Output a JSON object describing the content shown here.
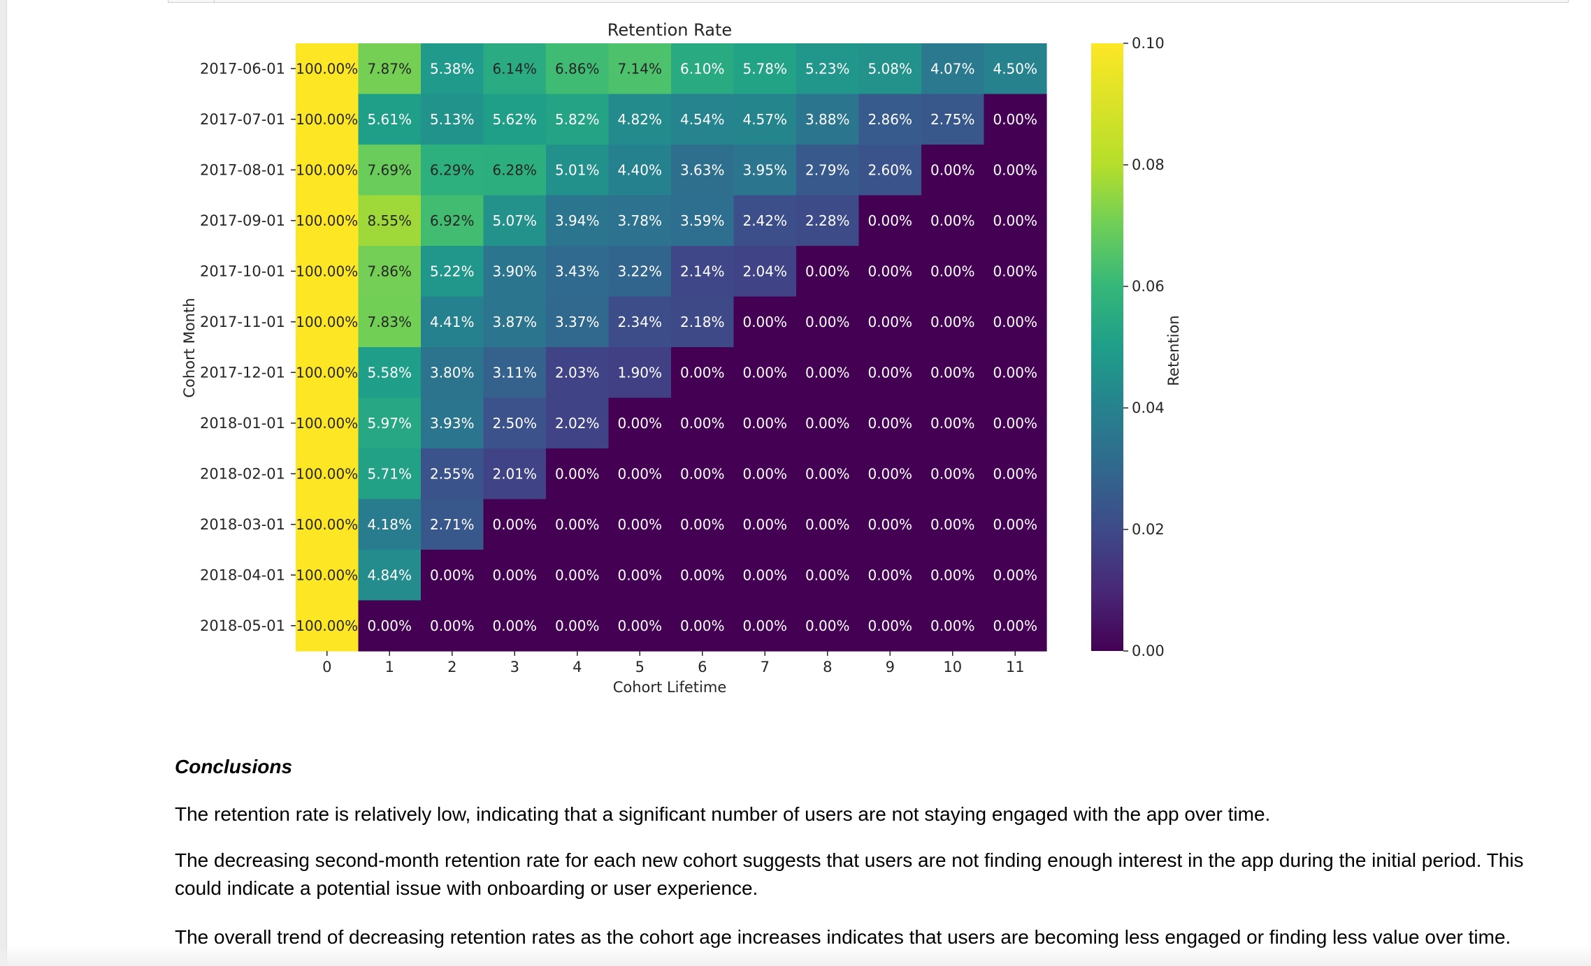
{
  "chart_data": {
    "type": "heatmap",
    "title": "Retention Rate",
    "xlabel": "Cohort Lifetime",
    "ylabel": "Cohort Month",
    "x": [
      "0",
      "1",
      "2",
      "3",
      "4",
      "5",
      "6",
      "7",
      "8",
      "9",
      "10",
      "11"
    ],
    "y": [
      "2017-06-01",
      "2017-07-01",
      "2017-08-01",
      "2017-09-01",
      "2017-10-01",
      "2017-11-01",
      "2017-12-01",
      "2018-01-01",
      "2018-02-01",
      "2018-03-01",
      "2018-04-01",
      "2018-05-01"
    ],
    "values": [
      [
        1.0,
        0.0787,
        0.0538,
        0.0614,
        0.0686,
        0.0714,
        0.061,
        0.0578,
        0.0523,
        0.0508,
        0.0407,
        0.045
      ],
      [
        1.0,
        0.0561,
        0.0513,
        0.0562,
        0.0582,
        0.0482,
        0.0454,
        0.0457,
        0.0388,
        0.0286,
        0.0275,
        0.0
      ],
      [
        1.0,
        0.0769,
        0.0629,
        0.0628,
        0.0501,
        0.044,
        0.0363,
        0.0395,
        0.0279,
        0.026,
        0.0,
        0.0
      ],
      [
        1.0,
        0.0855,
        0.0692,
        0.0507,
        0.0394,
        0.0378,
        0.0359,
        0.0242,
        0.0228,
        0.0,
        0.0,
        0.0
      ],
      [
        1.0,
        0.0786,
        0.0522,
        0.039,
        0.0343,
        0.0322,
        0.0214,
        0.0204,
        0.0,
        0.0,
        0.0,
        0.0
      ],
      [
        1.0,
        0.0783,
        0.0441,
        0.0387,
        0.0337,
        0.0234,
        0.0218,
        0.0,
        0.0,
        0.0,
        0.0,
        0.0
      ],
      [
        1.0,
        0.0558,
        0.038,
        0.0311,
        0.0203,
        0.019,
        0.0,
        0.0,
        0.0,
        0.0,
        0.0,
        0.0
      ],
      [
        1.0,
        0.0597,
        0.0393,
        0.025,
        0.0202,
        0.0,
        0.0,
        0.0,
        0.0,
        0.0,
        0.0,
        0.0
      ],
      [
        1.0,
        0.0571,
        0.0255,
        0.0201,
        0.0,
        0.0,
        0.0,
        0.0,
        0.0,
        0.0,
        0.0,
        0.0
      ],
      [
        1.0,
        0.0418,
        0.0271,
        0.0,
        0.0,
        0.0,
        0.0,
        0.0,
        0.0,
        0.0,
        0.0,
        0.0
      ],
      [
        1.0,
        0.0484,
        0.0,
        0.0,
        0.0,
        0.0,
        0.0,
        0.0,
        0.0,
        0.0,
        0.0,
        0.0
      ],
      [
        1.0,
        0.0,
        0.0,
        0.0,
        0.0,
        0.0,
        0.0,
        0.0,
        0.0,
        0.0,
        0.0,
        0.0
      ]
    ],
    "labels": [
      [
        "100.00%",
        "7.87%",
        "5.38%",
        "6.14%",
        "6.86%",
        "7.14%",
        "6.10%",
        "5.78%",
        "5.23%",
        "5.08%",
        "4.07%",
        "4.50%"
      ],
      [
        "100.00%",
        "5.61%",
        "5.13%",
        "5.62%",
        "5.82%",
        "4.82%",
        "4.54%",
        "4.57%",
        "3.88%",
        "2.86%",
        "2.75%",
        "0.00%"
      ],
      [
        "100.00%",
        "7.69%",
        "6.29%",
        "6.28%",
        "5.01%",
        "4.40%",
        "3.63%",
        "3.95%",
        "2.79%",
        "2.60%",
        "0.00%",
        "0.00%"
      ],
      [
        "100.00%",
        "8.55%",
        "6.92%",
        "5.07%",
        "3.94%",
        "3.78%",
        "3.59%",
        "2.42%",
        "2.28%",
        "0.00%",
        "0.00%",
        "0.00%"
      ],
      [
        "100.00%",
        "7.86%",
        "5.22%",
        "3.90%",
        "3.43%",
        "3.22%",
        "2.14%",
        "2.04%",
        "0.00%",
        "0.00%",
        "0.00%",
        "0.00%"
      ],
      [
        "100.00%",
        "7.83%",
        "4.41%",
        "3.87%",
        "3.37%",
        "2.34%",
        "2.18%",
        "0.00%",
        "0.00%",
        "0.00%",
        "0.00%",
        "0.00%"
      ],
      [
        "100.00%",
        "5.58%",
        "3.80%",
        "3.11%",
        "2.03%",
        "1.90%",
        "0.00%",
        "0.00%",
        "0.00%",
        "0.00%",
        "0.00%",
        "0.00%"
      ],
      [
        "100.00%",
        "5.97%",
        "3.93%",
        "2.50%",
        "2.02%",
        "0.00%",
        "0.00%",
        "0.00%",
        "0.00%",
        "0.00%",
        "0.00%",
        "0.00%"
      ],
      [
        "100.00%",
        "5.71%",
        "2.55%",
        "2.01%",
        "0.00%",
        "0.00%",
        "0.00%",
        "0.00%",
        "0.00%",
        "0.00%",
        "0.00%",
        "0.00%"
      ],
      [
        "100.00%",
        "4.18%",
        "2.71%",
        "0.00%",
        "0.00%",
        "0.00%",
        "0.00%",
        "0.00%",
        "0.00%",
        "0.00%",
        "0.00%",
        "0.00%"
      ],
      [
        "100.00%",
        "4.84%",
        "0.00%",
        "0.00%",
        "0.00%",
        "0.00%",
        "0.00%",
        "0.00%",
        "0.00%",
        "0.00%",
        "0.00%",
        "0.00%"
      ],
      [
        "100.00%",
        "0.00%",
        "0.00%",
        "0.00%",
        "0.00%",
        "0.00%",
        "0.00%",
        "0.00%",
        "0.00%",
        "0.00%",
        "0.00%",
        "0.00%"
      ]
    ],
    "colorbar": {
      "label": "Retention",
      "vmin": 0.0,
      "vmax": 0.1,
      "ticks": [
        "0.00",
        "0.02",
        "0.04",
        "0.06",
        "0.08",
        "0.10"
      ],
      "colormap": "viridis"
    },
    "grid": false
  },
  "colors": {
    "text": "#262626",
    "cell_text_light": "#ffffff",
    "cell_text_dark": "#262626"
  },
  "conclusions": {
    "heading": "Conclusions",
    "paragraphs": [
      "The retention rate is relatively low, indicating that a significant number of users are not staying engaged with the app over time.",
      "The decreasing second-month retention rate for each new cohort suggests that users are not finding enough interest in the app during the initial period. This could indicate a potential issue with onboarding or user experience.",
      "The overall trend of decreasing retention rates as the cohort age increases indicates that users are becoming less engaged or finding less value over time."
    ]
  }
}
